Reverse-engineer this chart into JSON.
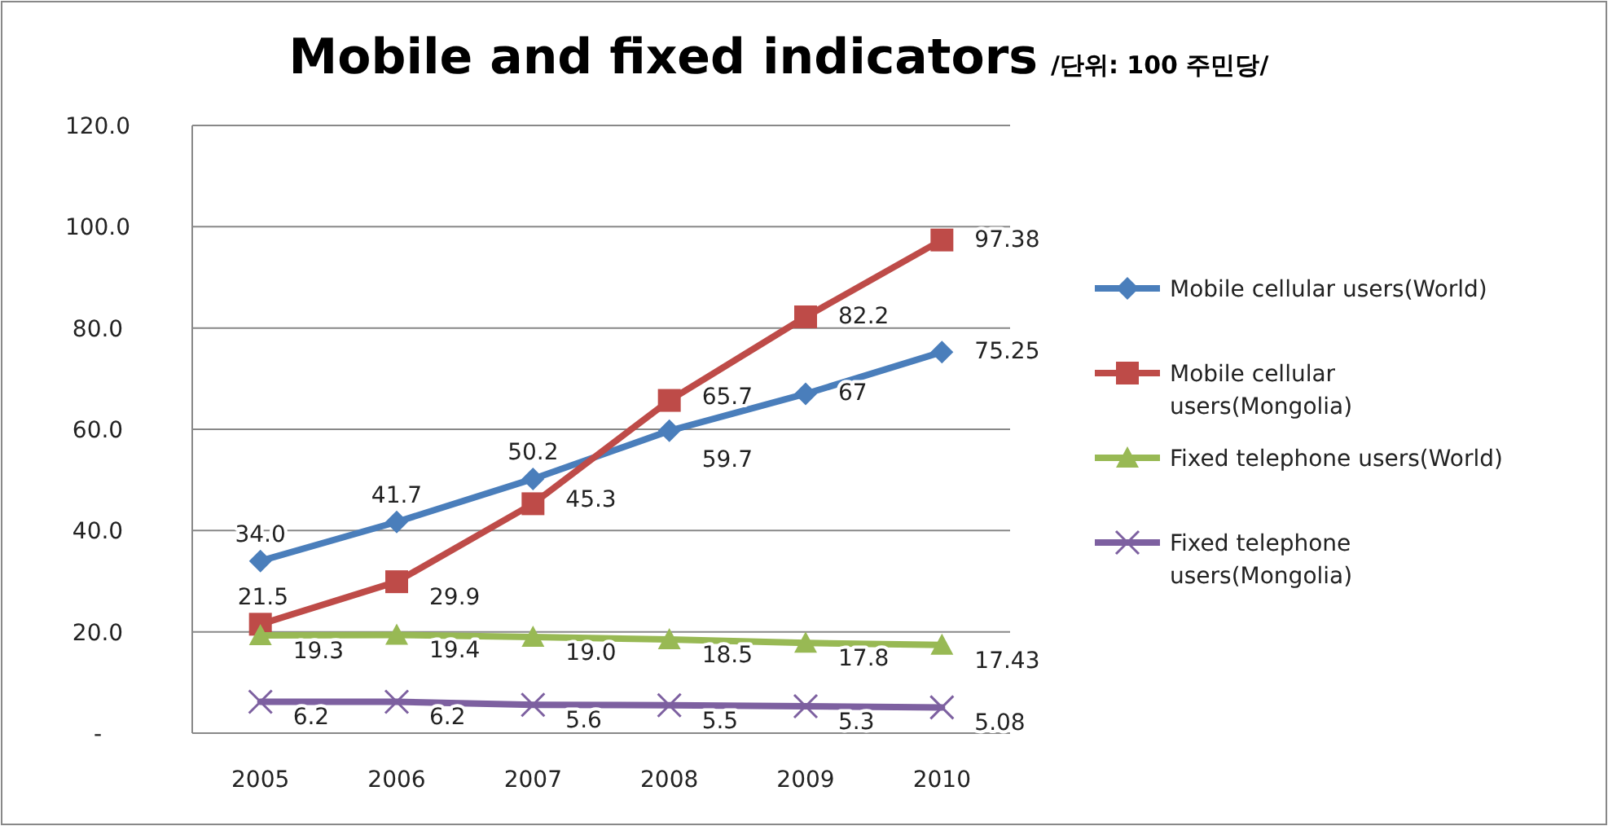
{
  "chart_data": {
    "type": "line",
    "title": "Mobile and fixed indicators",
    "subtitle": "/단위: 100 주민당/",
    "categories": [
      "2005",
      "2006",
      "2007",
      "2008",
      "2009",
      "2010"
    ],
    "ylim": [
      0,
      120
    ],
    "yticks": [
      {
        "value": 0,
        "label": "-"
      },
      {
        "value": 20,
        "label": "20.0"
      },
      {
        "value": 40,
        "label": "40.0"
      },
      {
        "value": 60,
        "label": "60.0"
      },
      {
        "value": 80,
        "label": "80.0"
      },
      {
        "value": 100,
        "label": "100.0"
      },
      {
        "value": 120,
        "label": "120.0"
      }
    ],
    "grid": "y",
    "legend": "right",
    "data_labels": true,
    "series": [
      {
        "name": "Mobile cellular users(World)",
        "color": "#4a7ebb",
        "marker": "diamond",
        "values": [
          34.0,
          41.7,
          50.2,
          59.7,
          67,
          75.25
        ],
        "value_labels": [
          "34.0",
          "41.7",
          "50.2",
          "59.7",
          "67",
          "75.25"
        ]
      },
      {
        "name": "Mobile cellular users(Mongolia)",
        "color": "#be4b48",
        "marker": "square",
        "values": [
          21.5,
          29.9,
          45.3,
          65.7,
          82.2,
          97.38
        ],
        "value_labels": [
          "21.5",
          "29.9",
          "45.3",
          "65.7",
          "82.2",
          "97.38"
        ]
      },
      {
        "name": "Fixed telephone users(World)",
        "color": "#98b954",
        "marker": "triangle",
        "values": [
          19.3,
          19.4,
          19.0,
          18.5,
          17.8,
          17.43
        ],
        "value_labels": [
          "19.3",
          "19.4",
          "19.0",
          "18.5",
          "17.8",
          "17.43"
        ]
      },
      {
        "name": "Fixed telephone users(Mongolia)",
        "color": "#7d60a0",
        "marker": "cross",
        "values": [
          6.2,
          6.2,
          5.6,
          5.5,
          5.3,
          5.08
        ],
        "value_labels": [
          "6.2",
          "6.2",
          "5.6",
          "5.5",
          "5.3",
          "5.08"
        ]
      }
    ]
  }
}
